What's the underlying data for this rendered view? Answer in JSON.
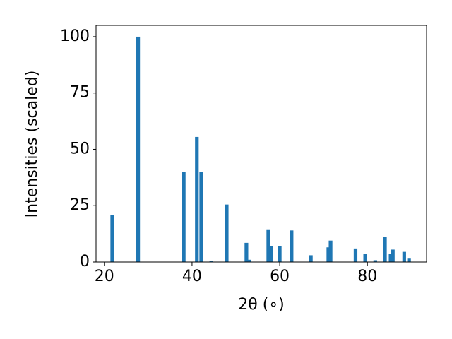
{
  "chart_data": {
    "type": "bar",
    "xlabel": "2θ (∘)",
    "ylabel": "Intensities (scaled)",
    "x": [
      21.8,
      27.7,
      38.1,
      41.1,
      42.1,
      44.4,
      47.9,
      52.4,
      53.1,
      57.4,
      58.1,
      60.0,
      62.7,
      67.1,
      71.1,
      71.6,
      77.3,
      79.5,
      81.8,
      84.0,
      85.3,
      85.8,
      88.4,
      89.5
    ],
    "values": [
      21,
      100,
      40,
      55.5,
      40,
      0.5,
      25.5,
      8.5,
      1,
      14.5,
      7,
      7,
      14,
      3,
      6.5,
      9.5,
      6,
      3.5,
      0.8,
      11,
      3.5,
      5.5,
      4.5,
      1.5
    ],
    "color": "#1f77b4",
    "xlim": [
      18.1,
      93.5
    ],
    "xticks": [
      20,
      40,
      60,
      80
    ],
    "ylim": [
      0,
      105
    ],
    "yticks": [
      0,
      25,
      50,
      75,
      100
    ]
  }
}
